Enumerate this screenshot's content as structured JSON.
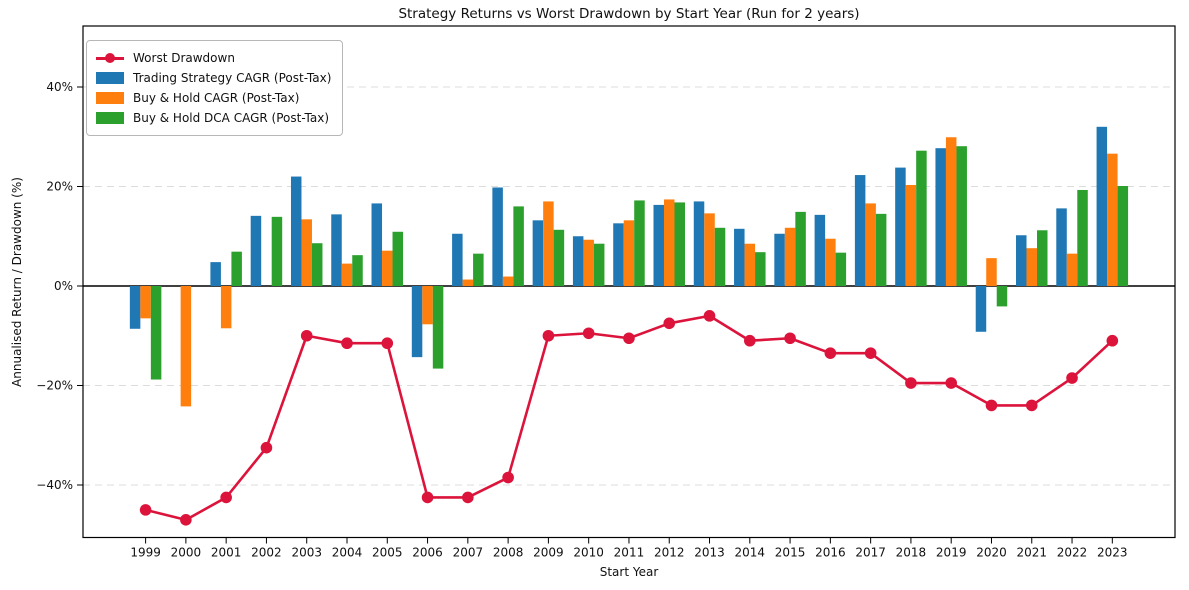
{
  "chart_data": {
    "type": "bar+line",
    "title": "Strategy Returns vs Worst Drawdown by Start Year (Run for 2 years)",
    "xlabel": "Start Year",
    "ylabel": "Annualised Return / Drawdown (%)",
    "categories": [
      1999,
      2000,
      2001,
      2002,
      2003,
      2004,
      2005,
      2006,
      2007,
      2008,
      2009,
      2010,
      2011,
      2012,
      2013,
      2014,
      2015,
      2016,
      2017,
      2018,
      2019,
      2020,
      2021,
      2022,
      2023
    ],
    "ylim": [
      -50.5,
      52.3
    ],
    "yticks": [
      {
        "value": 40,
        "label": "40%"
      },
      {
        "value": 20,
        "label": "20%"
      },
      {
        "value": 0,
        "label": "0%"
      },
      {
        "value": -20,
        "label": "−20%"
      },
      {
        "value": -40,
        "label": "−40%"
      }
    ],
    "grid": {
      "horizontal": true,
      "style": "dashed",
      "color": "#dcdcdc",
      "zero_line_color": "#000000"
    },
    "legend_position": "upper-left",
    "line_series": {
      "name": "Worst Drawdown",
      "color": "#dc143c",
      "values": [
        -45,
        -47,
        -42.5,
        -32.5,
        -10,
        -11.5,
        -11.5,
        -42.5,
        -42.5,
        -38.5,
        -10,
        -9.5,
        -10.5,
        -7.5,
        -6,
        -11,
        -10.5,
        -13.5,
        -13.5,
        -19.5,
        -19.5,
        -24,
        -24,
        -18.5,
        -11
      ]
    },
    "bar_series": [
      {
        "name": "Trading Strategy CAGR (Post-Tax)",
        "color": "#1f77b4",
        "values": [
          -8.6,
          0,
          4.8,
          14.1,
          22,
          14.4,
          16.6,
          -14.3,
          10.5,
          19.8,
          13.2,
          10,
          12.6,
          16.3,
          17,
          11.5,
          10.5,
          14.3,
          22.3,
          23.8,
          27.7,
          -9.2,
          10.2,
          15.6,
          32
        ]
      },
      {
        "name": "Buy & Hold CAGR (Post-Tax)",
        "color": "#ff7f0e",
        "values": [
          -6.5,
          -24.2,
          -8.5,
          0,
          13.4,
          4.5,
          7.1,
          -7.7,
          1.3,
          1.9,
          17,
          9.3,
          13.2,
          17.4,
          14.6,
          8.5,
          11.7,
          9.5,
          16.6,
          20.3,
          29.9,
          5.6,
          7.6,
          6.5,
          26.6
        ]
      },
      {
        "name": "Buy & Hold DCA CAGR (Post-Tax)",
        "color": "#2ca02c",
        "values": [
          -18.8,
          0,
          6.9,
          13.9,
          8.6,
          6.2,
          10.9,
          -16.6,
          6.5,
          16,
          11.3,
          8.5,
          17.2,
          16.8,
          11.7,
          6.8,
          14.9,
          6.7,
          14.5,
          27.2,
          28.1,
          -4.1,
          11.2,
          19.3,
          20.1
        ]
      }
    ]
  }
}
